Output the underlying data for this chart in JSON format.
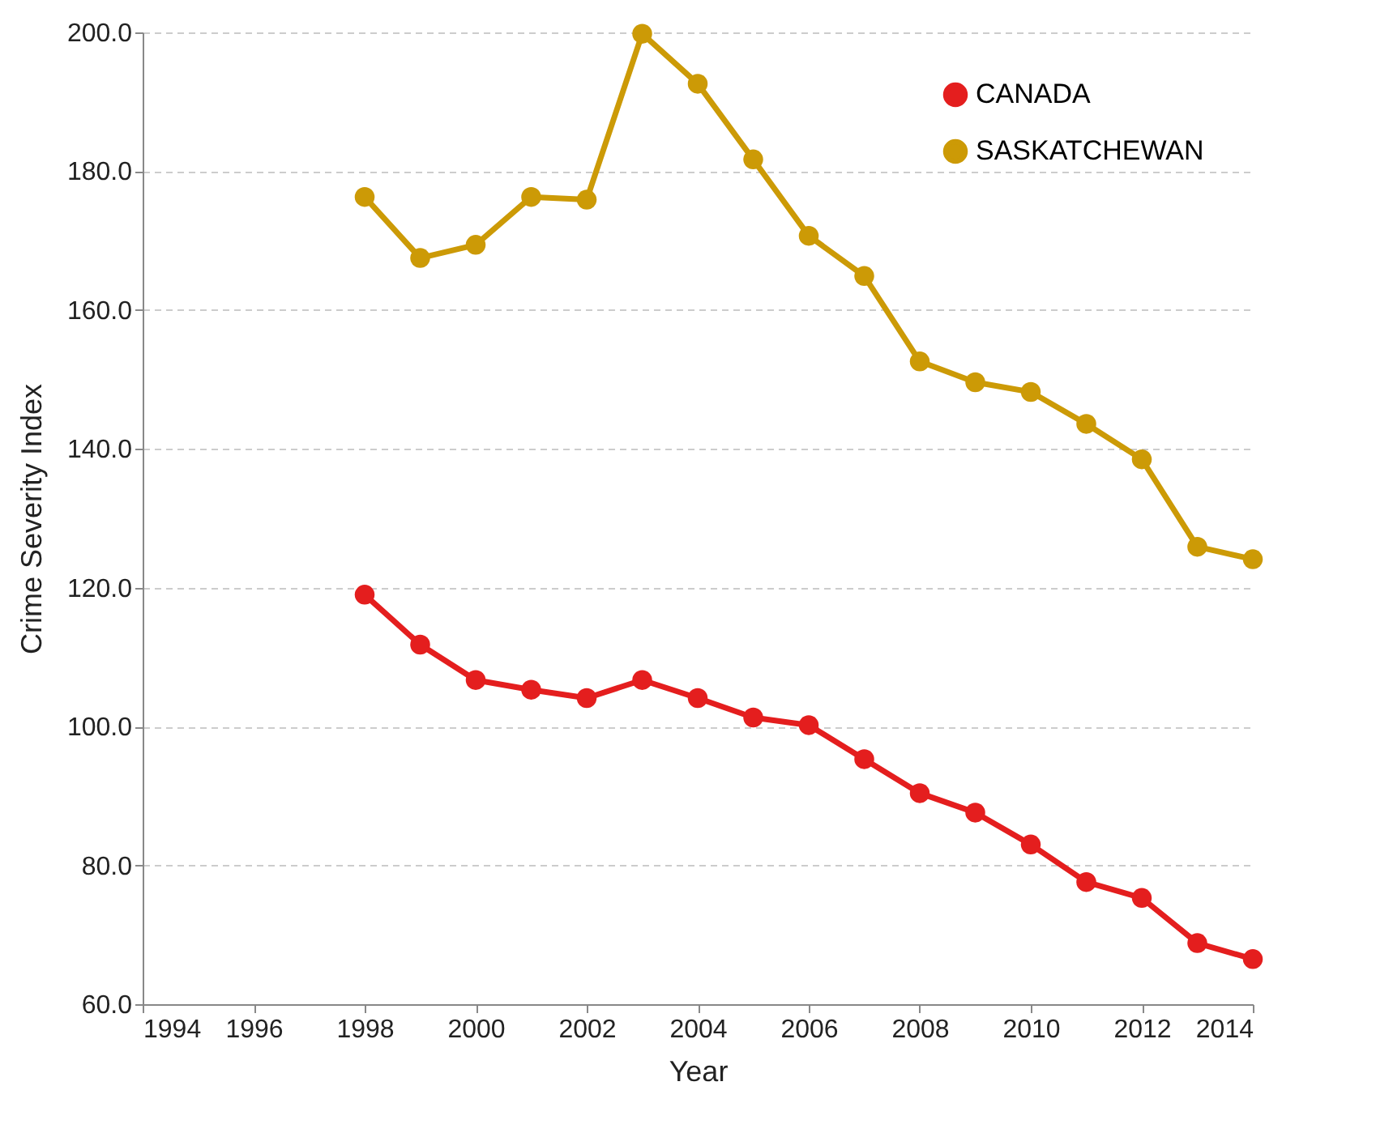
{
  "chart_data": {
    "type": "line",
    "xlabel": "Year",
    "ylabel": "Crime Severity Index",
    "x": [
      1998,
      1999,
      2000,
      2001,
      2002,
      2003,
      2004,
      2005,
      2006,
      2007,
      2008,
      2009,
      2010,
      2011,
      2012,
      2013,
      2014
    ],
    "series": [
      {
        "name": "CANADA",
        "color": "#e41e1e",
        "values": [
          119.0,
          111.8,
          106.7,
          105.3,
          104.1,
          106.7,
          104.1,
          101.3,
          100.2,
          95.3,
          90.4,
          87.6,
          83.0,
          77.6,
          75.3,
          68.8,
          66.5
        ]
      },
      {
        "name": "SASKATCHEWAN",
        "color": "#cc9a06",
        "values": [
          176.3,
          167.5,
          169.4,
          176.3,
          175.9,
          199.8,
          192.6,
          181.7,
          170.7,
          164.9,
          152.6,
          149.6,
          148.2,
          143.6,
          138.5,
          125.9,
          124.1
        ]
      }
    ],
    "xlim": [
      1994,
      2014
    ],
    "xticks": [
      1994,
      1996,
      1998,
      2000,
      2002,
      2004,
      2006,
      2008,
      2010,
      2012,
      2014
    ],
    "ylim": [
      60,
      200
    ],
    "yticks": [
      {
        "value": 60,
        "label": "60.0"
      },
      {
        "value": 80,
        "label": "80.0"
      },
      {
        "value": 100,
        "label": "100.0"
      },
      {
        "value": 120,
        "label": "120.0"
      },
      {
        "value": 140,
        "label": "140.0"
      },
      {
        "value": 160,
        "label": "160.0"
      },
      {
        "value": 180,
        "label": "180.0"
      },
      {
        "value": 200,
        "label": "200.0"
      }
    ],
    "grid": "y",
    "legend": "top right",
    "marker": "circle",
    "line_style": "solid"
  }
}
